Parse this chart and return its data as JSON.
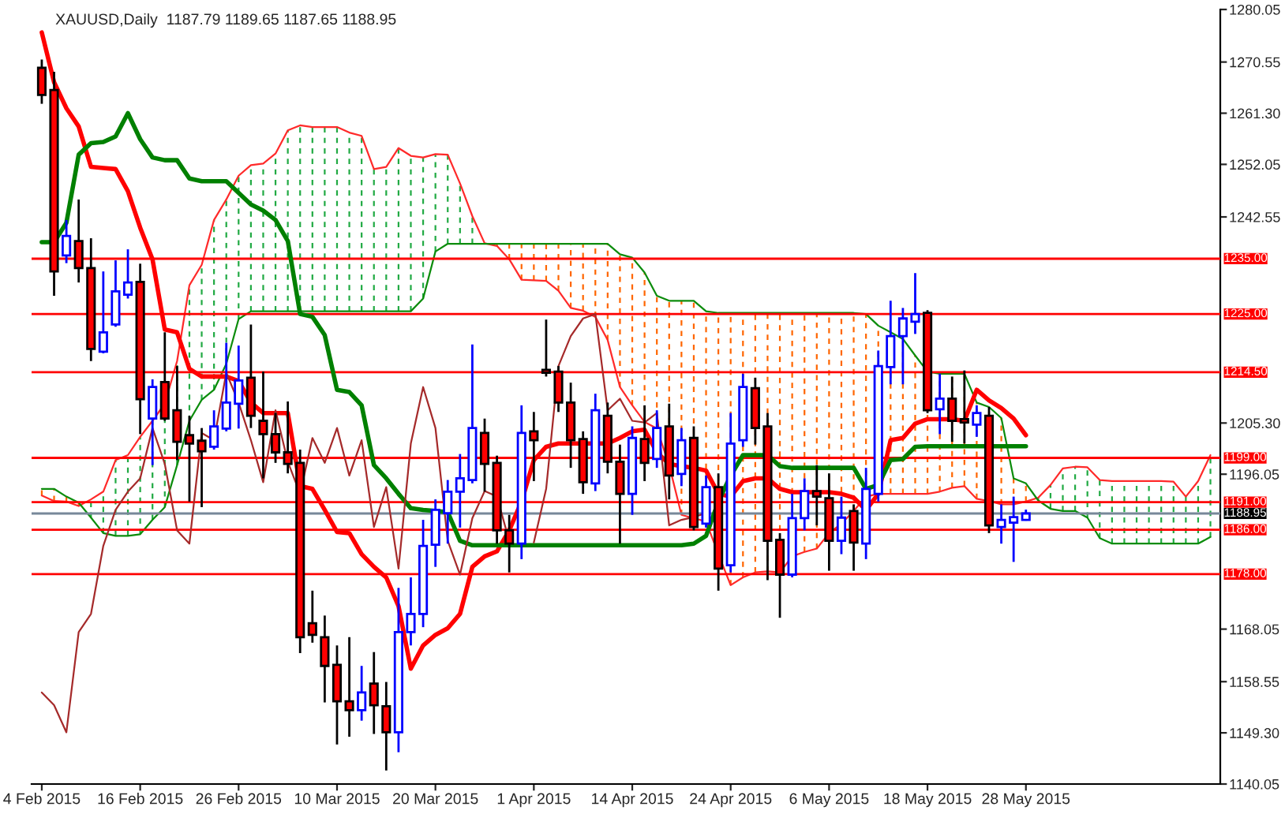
{
  "chart_data": {
    "type": "candlestick",
    "title": "XAUUSD,Daily  1187.79 1189.65 1187.65 1188.95",
    "categories": [
      "4 Feb 2015",
      null,
      null,
      null,
      null,
      null,
      null,
      null,
      "16 Feb 2015",
      null,
      null,
      null,
      null,
      null,
      null,
      null,
      "26 Feb 2015",
      null,
      null,
      null,
      null,
      null,
      null,
      null,
      "10 Mar 2015",
      null,
      null,
      null,
      null,
      null,
      null,
      null,
      "20 Mar 2015",
      null,
      null,
      null,
      null,
      null,
      null,
      null,
      "1 Apr 2015",
      null,
      null,
      null,
      null,
      null,
      null,
      null,
      "14 Apr 2015",
      null,
      null,
      null,
      null,
      null,
      null,
      null,
      "24 Apr 2015",
      null,
      null,
      null,
      null,
      null,
      null,
      null,
      "6 May 2015",
      null,
      null,
      null,
      null,
      null,
      null,
      null,
      "18 May 2015",
      null,
      null,
      null,
      null,
      null,
      null,
      null,
      "28 May 2015",
      null,
      null,
      null,
      null,
      null,
      null,
      null,
      null,
      null,
      null,
      null,
      null,
      null,
      null,
      null
    ],
    "ohlc": [
      [
        1269.5,
        1271.0,
        1263.0,
        1264.6
      ],
      [
        1265.5,
        1268.8,
        1228.3,
        1232.7
      ],
      [
        1235.6,
        1242.0,
        1234.2,
        1239.1
      ],
      [
        1238.2,
        1245.7,
        1230.7,
        1233.3
      ],
      [
        1233.3,
        1238.7,
        1216.5,
        1218.7
      ],
      [
        1218.2,
        1232.7,
        1217.9,
        1221.7
      ],
      [
        1223.1,
        1234.7,
        1222.7,
        1229.1
      ],
      [
        1228.5,
        1236.7,
        1227.8,
        1230.7
      ],
      [
        1230.8,
        1234.1,
        1203.3,
        1209.6
      ],
      [
        1206.1,
        1213.2,
        1197.7,
        1211.8
      ],
      [
        1212.7,
        1221.7,
        1205.7,
        1206.1
      ],
      [
        1207.6,
        1215.6,
        1198.6,
        1201.9
      ],
      [
        1203.1,
        1206.6,
        1191.1,
        1201.6
      ],
      [
        1202.1,
        1204.4,
        1190.1,
        1200.2
      ],
      [
        1201.0,
        1207.6,
        1200.5,
        1204.7
      ],
      [
        1204.3,
        1219.8,
        1203.8,
        1209.0
      ],
      [
        1208.8,
        1219.3,
        1204.3,
        1213.0
      ],
      [
        1213.5,
        1223.1,
        1204.4,
        1206.6
      ],
      [
        1205.7,
        1214.6,
        1195.3,
        1203.3
      ],
      [
        1203.3,
        1207.1,
        1198.1,
        1200.0
      ],
      [
        1200.0,
        1209.2,
        1196.2,
        1197.9
      ],
      [
        1198.1,
        1200.5,
        1163.7,
        1166.6
      ],
      [
        1169.1,
        1175.0,
        1165.6,
        1167.0
      ],
      [
        1166.6,
        1170.5,
        1154.8,
        1161.4
      ],
      [
        1161.6,
        1165.1,
        1147.2,
        1155.0
      ],
      [
        1155.0,
        1166.6,
        1148.6,
        1153.4
      ],
      [
        1153.4,
        1161.4,
        1151.5,
        1156.6
      ],
      [
        1158.2,
        1163.9,
        1149.1,
        1154.3
      ],
      [
        1154.1,
        1158.5,
        1142.5,
        1149.4
      ],
      [
        1149.4,
        1175.5,
        1145.8,
        1167.5
      ],
      [
        1167.5,
        1177.4,
        1165.1,
        1170.8
      ],
      [
        1170.8,
        1187.8,
        1168.4,
        1183.1
      ],
      [
        1183.3,
        1191.5,
        1179.3,
        1189.6
      ],
      [
        1189.0,
        1195.0,
        1183.5,
        1192.9
      ],
      [
        1192.9,
        1199.7,
        1186.4,
        1195.3
      ],
      [
        1195.0,
        1219.5,
        1194.4,
        1204.4
      ],
      [
        1203.5,
        1206.1,
        1192.9,
        1197.9
      ],
      [
        1198.1,
        1199.4,
        1183.5,
        1185.9
      ],
      [
        1185.9,
        1188.7,
        1178.3,
        1183.5
      ],
      [
        1183.5,
        1208.5,
        1180.7,
        1203.5
      ],
      [
        1203.8,
        1207.3,
        1194.8,
        1202.2
      ],
      [
        1214.9,
        1224.0,
        1213.7,
        1214.4
      ],
      [
        1214.6,
        1215.6,
        1207.3,
        1209.0
      ],
      [
        1209.0,
        1212.6,
        1197.2,
        1202.2
      ],
      [
        1202.4,
        1203.8,
        1192.5,
        1194.6
      ],
      [
        1194.4,
        1210.6,
        1193.0,
        1207.6
      ],
      [
        1206.6,
        1209.0,
        1196.2,
        1198.3
      ],
      [
        1198.3,
        1201.4,
        1183.5,
        1192.5
      ],
      [
        1192.5,
        1204.7,
        1188.7,
        1202.6
      ],
      [
        1202.4,
        1208.5,
        1194.8,
        1198.1
      ],
      [
        1198.8,
        1207.6,
        1197.2,
        1204.4
      ],
      [
        1204.7,
        1208.8,
        1191.5,
        1195.8
      ],
      [
        1196.1,
        1204.4,
        1193.9,
        1202.2
      ],
      [
        1202.6,
        1204.7,
        1185.9,
        1186.5
      ],
      [
        1187.1,
        1195.8,
        1186.4,
        1193.7
      ],
      [
        1193.7,
        1196.2,
        1175.0,
        1179.0
      ],
      [
        1179.6,
        1207.1,
        1178.3,
        1201.6
      ],
      [
        1202.2,
        1214.2,
        1201.0,
        1211.8
      ],
      [
        1211.6,
        1213.5,
        1201.4,
        1204.4
      ],
      [
        1204.7,
        1207.1,
        1176.9,
        1184.0
      ],
      [
        1184.2,
        1185.4,
        1170.1,
        1177.9
      ],
      [
        1177.9,
        1192.5,
        1177.4,
        1188.1
      ],
      [
        1188.1,
        1195.3,
        1185.9,
        1193.0
      ],
      [
        1193.0,
        1197.7,
        1186.8,
        1192.0
      ],
      [
        1191.7,
        1196.2,
        1178.6,
        1184.0
      ],
      [
        1184.0,
        1192.0,
        1181.6,
        1188.2
      ],
      [
        1189.4,
        1190.6,
        1178.6,
        1183.7
      ],
      [
        1183.5,
        1197.2,
        1180.7,
        1193.4
      ],
      [
        1192.5,
        1218.4,
        1191.1,
        1215.6
      ],
      [
        1215.4,
        1227.4,
        1212.3,
        1221.0
      ],
      [
        1221.0,
        1226.1,
        1212.3,
        1224.2
      ],
      [
        1223.6,
        1232.4,
        1221.4,
        1225.0
      ],
      [
        1225.2,
        1225.7,
        1207.1,
        1207.6
      ],
      [
        1207.8,
        1214.2,
        1203.3,
        1209.7
      ],
      [
        1209.7,
        1213.7,
        1201.9,
        1205.7
      ],
      [
        1206.0,
        1214.8,
        1201.6,
        1205.4
      ],
      [
        1205.0,
        1208.5,
        1202.8,
        1207.1
      ],
      [
        1206.6,
        1208.2,
        1185.4,
        1186.8
      ],
      [
        1186.5,
        1190.6,
        1183.5,
        1187.8
      ],
      [
        1187.3,
        1192.0,
        1180.2,
        1188.3
      ],
      [
        1187.79,
        1189.65,
        1187.65,
        1188.95
      ],
      null,
      null,
      null,
      null,
      null,
      null,
      null,
      null,
      null,
      null,
      null,
      null,
      null,
      null,
      null
    ],
    "series": [
      {
        "type": "line",
        "color": "#ff0000",
        "values": [
          1275.9,
          1266.9,
          1262.2,
          1258.9,
          1251.6,
          1251.4,
          1251.2,
          1247.2,
          1240.6,
          1234.9,
          1222.2,
          1221.7,
          1215.1,
          1213.7,
          1213.7,
          1213.7,
          1212.9,
          1209.0,
          1207.1,
          1207.1,
          1207.1,
          1193.9,
          1193.4,
          1189.6,
          1185.6,
          1185.4,
          1181.6,
          1179.3,
          1177.4,
          1172.2,
          1160.9,
          1165.1,
          1167.0,
          1168.2,
          1170.8,
          1179.3,
          1181.2,
          1182.1,
          1185.9,
          1191.1,
          1198.6,
          1201.0,
          1201.6,
          1201.6,
          1201.6,
          1201.6,
          1201.6,
          1202.6,
          1203.8,
          1204.1,
          1200.0,
          1197.9,
          1197.5,
          1197.2,
          1196.7,
          1192.5,
          1192.0,
          1194.8,
          1195.3,
          1195.3,
          1193.4,
          1192.8,
          1192.8,
          1192.8,
          1192.8,
          1192.5,
          1191.8,
          1189.6,
          1192.5,
          1202.2,
          1202.6,
          1205.2,
          1206.0,
          1206.0,
          1206.0,
          1205.7,
          1211.3,
          1209.4,
          1208.0,
          1206.1,
          1203.1,
          null,
          null,
          null,
          null,
          null,
          null,
          null,
          null,
          null,
          null,
          null,
          null,
          null,
          null,
          null
        ]
      },
      {
        "type": "line",
        "color": "#008000",
        "values": [
          1238.0,
          1238.0,
          1241.5,
          1253.8,
          1255.9,
          1256.1,
          1257.1,
          1261.3,
          1256.6,
          1253.3,
          1252.8,
          1252.8,
          1249.5,
          1249.0,
          1249.0,
          1249.0,
          1246.9,
          1244.8,
          1243.7,
          1242.0,
          1238.2,
          1225.0,
          1224.5,
          1221.2,
          1211.3,
          1210.9,
          1208.5,
          1197.7,
          1195.3,
          1192.5,
          1189.9,
          1189.6,
          1189.4,
          1189.2,
          1184.0,
          1183.2,
          1183.2,
          1183.2,
          1183.2,
          1183.2,
          1183.2,
          1183.2,
          1183.2,
          1183.2,
          1183.2,
          1183.2,
          1183.2,
          1183.2,
          1183.2,
          1183.2,
          1183.2,
          1183.2,
          1183.2,
          1183.5,
          1184.9,
          1191.1,
          1195.8,
          1199.5,
          1199.5,
          1199.5,
          1197.5,
          1197.2,
          1197.2,
          1197.2,
          1197.2,
          1197.2,
          1197.2,
          1193.4,
          1194.1,
          1198.6,
          1198.8,
          1201.0,
          1201.1,
          1201.1,
          1201.1,
          1201.1,
          1201.1,
          1201.1,
          1201.1,
          1201.1,
          1201.1,
          null,
          null,
          null,
          null,
          null,
          null,
          null,
          null,
          null,
          null,
          null,
          null,
          null,
          null,
          null
        ]
      },
      {
        "type": "line",
        "color": "#a52a2a",
        "values": [
          1156.6,
          1154.3,
          1149.4,
          1167.5,
          1170.8,
          1183.1,
          1189.6,
          1192.9,
          1195.3,
          1204.4,
          1197.9,
          1185.9,
          1183.5,
          1203.5,
          1202.2,
          1214.4,
          1209.0,
          1202.2,
          1194.6,
          1207.6,
          1198.3,
          1192.5,
          1202.6,
          1198.1,
          1204.4,
          1195.8,
          1202.2,
          1186.5,
          1193.7,
          1179.0,
          1201.6,
          1211.8,
          1204.4,
          1184.0,
          1177.9,
          1188.1,
          1193.0,
          1192.0,
          1184.0,
          null,
          1183.7,
          1193.4,
          1215.6,
          1221.0,
          1224.2,
          1225.0,
          1207.6,
          1209.7,
          1205.7,
          1205.4,
          1207.1,
          1186.8,
          1187.8,
          1188.3,
          1189.0,
          null,
          null,
          null,
          null,
          null,
          null,
          null,
          null,
          null,
          null,
          null,
          null,
          null,
          null,
          null,
          null,
          null,
          null,
          null,
          null,
          null,
          null,
          null,
          null,
          null,
          null,
          null,
          null,
          null,
          null,
          null,
          null,
          null,
          null,
          null,
          null,
          null,
          null,
          null,
          null,
          null
        ]
      },
      {
        "type": "line",
        "color": "#ff2a2a",
        "values": [
          1192.2,
          1191.2,
          1191.1,
          1190.3,
          1191.5,
          1192.9,
          1198.6,
          1199.5,
          1202.8,
          1205.7,
          1208.8,
          1216.5,
          1230.2,
          1233.9,
          1242.0,
          1245.7,
          1250.0,
          1251.9,
          1252.2,
          1254.0,
          1258.2,
          1259.1,
          1258.8,
          1258.8,
          1258.8,
          1257.8,
          1257.2,
          1251.2,
          1251.6,
          1255.0,
          1253.6,
          1253.3,
          1253.9,
          1253.8,
          1248.6,
          1242.7,
          1237.8,
          1237.3,
          1234.9,
          1231.2,
          1231.1,
          1231.0,
          1229.2,
          1226.1,
          1225.6,
          1224.5,
          1220.3,
          1211.8,
          1208.5,
          1205.5,
          1204.3,
          1197.7,
          1188.7,
          1188.1,
          1187.5,
          1181.6,
          1176.0,
          1177.4,
          1178.3,
          1178.5,
          1178.3,
          1181.2,
          1182.0,
          1182.6,
          1185.4,
          1187.1,
          1189.4,
          1192.0,
          1192.5,
          1192.5,
          1192.5,
          1192.5,
          1192.5,
          1192.9,
          1193.6,
          1193.9,
          1191.6,
          1191.2,
          1190.6,
          1190.6,
          1191.1,
          1191.8,
          1194.1,
          1197.1,
          1197.4,
          1197.3,
          1195.0,
          1194.8,
          1194.8,
          1194.8,
          1194.8,
          1194.8,
          1194.7,
          1192.0,
          1194.8,
          1199.5
        ]
      },
      {
        "type": "line",
        "color": "#0c8c0c",
        "values": [
          1193.4,
          1193.4,
          1192.0,
          1190.9,
          1188.2,
          1185.4,
          1184.9,
          1184.9,
          1185.2,
          1187.8,
          1190.1,
          1197.7,
          1205.7,
          1209.5,
          1211.3,
          1216.0,
          1224.1,
          1225.5,
          1225.5,
          1225.5,
          1225.5,
          1225.5,
          1225.5,
          1225.5,
          1225.5,
          1225.5,
          1225.5,
          1225.5,
          1225.5,
          1225.5,
          1225.5,
          1227.8,
          1236.3,
          1237.7,
          1237.7,
          1237.7,
          1237.7,
          1237.7,
          1237.7,
          1237.7,
          1237.7,
          1237.7,
          1237.7,
          1237.7,
          1237.7,
          1237.7,
          1237.7,
          1235.8,
          1235.2,
          1232.5,
          1228.3,
          1227.4,
          1227.4,
          1227.4,
          1225.5,
          1225.2,
          1225.2,
          1225.2,
          1225.2,
          1225.2,
          1225.2,
          1225.2,
          1225.2,
          1225.2,
          1225.2,
          1225.2,
          1225.2,
          1225.0,
          1222.9,
          1221.7,
          1220.5,
          1217.5,
          1214.6,
          1214.2,
          1214.2,
          1214.2,
          1209.0,
          1208.2,
          1206.2,
          1195.3,
          1194.4,
          1191.3,
          1189.8,
          1189.4,
          1189.4,
          1188.2,
          1184.5,
          1183.5,
          1183.5,
          1183.5,
          1183.5,
          1183.5,
          1183.5,
          1183.5,
          1183.5,
          1184.7
        ]
      }
    ],
    "ylim": [
      1140.05,
      1280.05
    ],
    "yticks": [
      {
        "value": 1280.05,
        "label": "1280.05"
      },
      {
        "value": 1270.55,
        "label": "1270.55"
      },
      {
        "value": 1261.3,
        "label": "1261.30"
      },
      {
        "value": 1252.05,
        "label": "1252.05"
      },
      {
        "value": 1242.55,
        "label": "1242.55"
      },
      {
        "value": 1205.3,
        "label": "1205.30"
      },
      {
        "value": 1196.05,
        "label": "1196.05"
      },
      {
        "value": 1168.05,
        "label": "1168.05"
      },
      {
        "value": 1158.55,
        "label": "1158.55"
      },
      {
        "value": 1149.3,
        "label": "1149.30"
      },
      {
        "value": 1140.05,
        "label": "1140.05"
      }
    ],
    "ref_lines": [
      {
        "axis": "y",
        "value": 1235,
        "label": "1235.00",
        "color": "#ff0000"
      },
      {
        "axis": "y",
        "value": 1225,
        "label": "1225.00",
        "color": "#ff0000"
      },
      {
        "axis": "y",
        "value": 1214.5,
        "label": "1214.50",
        "color": "#ff0000"
      },
      {
        "axis": "y",
        "value": 1199,
        "label": "1199.00",
        "color": "#ff0000"
      },
      {
        "axis": "y",
        "value": 1191,
        "label": "1191.00",
        "color": "#ff0000"
      },
      {
        "axis": "y",
        "value": 1186,
        "label": "1186.00",
        "color": "#ff0000"
      },
      {
        "axis": "y",
        "value": 1178,
        "label": "1178.00",
        "color": "#ff0000"
      },
      {
        "axis": "y",
        "value": 1188.95,
        "label": "1188.95",
        "color": "#778899"
      }
    ],
    "grid": false,
    "legend": false
  }
}
